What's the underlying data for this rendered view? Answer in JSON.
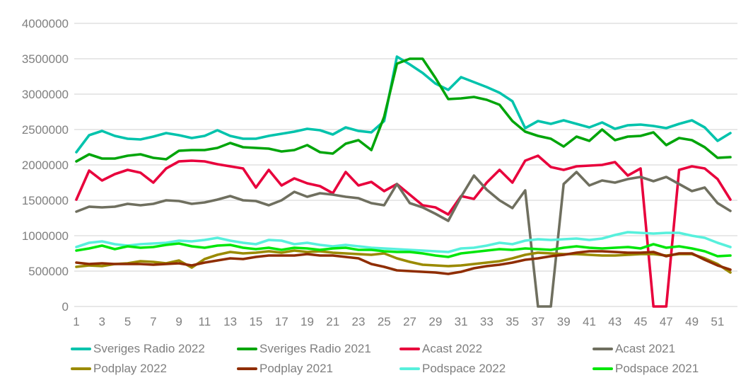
{
  "chart_data": {
    "type": "line",
    "title": "",
    "xlabel": "",
    "ylabel": "",
    "x": [
      1,
      2,
      3,
      4,
      5,
      6,
      7,
      8,
      9,
      10,
      11,
      12,
      13,
      14,
      15,
      16,
      17,
      18,
      19,
      20,
      21,
      22,
      23,
      24,
      25,
      26,
      27,
      28,
      29,
      30,
      31,
      32,
      33,
      34,
      35,
      36,
      37,
      38,
      39,
      40,
      41,
      42,
      43,
      44,
      45,
      46,
      47,
      48,
      49,
      50,
      51,
      52
    ],
    "x_tick_labels": [
      "1",
      "3",
      "5",
      "7",
      "9",
      "11",
      "13",
      "15",
      "17",
      "19",
      "21",
      "23",
      "25",
      "27",
      "29",
      "31",
      "33",
      "35",
      "37",
      "39",
      "41",
      "43",
      "45",
      "47",
      "49",
      "51"
    ],
    "y_ticks": [
      0,
      500000,
      1000000,
      1500000,
      2000000,
      2500000,
      3000000,
      3500000,
      4000000
    ],
    "y_tick_labels": [
      "0",
      "500000",
      "1000000",
      "1500000",
      "2000000",
      "2500000",
      "3000000",
      "3500000",
      "4000000"
    ],
    "ylim": [
      0,
      4000000
    ],
    "grid": true,
    "legend_position": "bottom",
    "colors": {
      "grid": "#d9d9d9",
      "axis_text": "#7f7f7f",
      "background": "#ffffff"
    },
    "series": [
      {
        "name": "Sveriges Radio 2022",
        "color": "#00c3ac",
        "values": [
          2180000,
          2420000,
          2480000,
          2410000,
          2370000,
          2360000,
          2400000,
          2450000,
          2420000,
          2380000,
          2410000,
          2490000,
          2410000,
          2370000,
          2370000,
          2410000,
          2440000,
          2470000,
          2510000,
          2490000,
          2430000,
          2530000,
          2480000,
          2460000,
          2620000,
          3530000,
          3420000,
          3300000,
          3150000,
          3060000,
          3240000,
          3170000,
          3100000,
          3020000,
          2900000,
          2520000,
          2620000,
          2580000,
          2630000,
          2580000,
          2530000,
          2600000,
          2510000,
          2560000,
          2570000,
          2550000,
          2520000,
          2580000,
          2630000,
          2530000,
          2340000,
          2450000
        ]
      },
      {
        "name": "Sveriges Radio 2021",
        "color": "#00a50a",
        "values": [
          2050000,
          2150000,
          2090000,
          2090000,
          2130000,
          2150000,
          2100000,
          2080000,
          2200000,
          2210000,
          2210000,
          2240000,
          2310000,
          2250000,
          2240000,
          2230000,
          2190000,
          2210000,
          2280000,
          2180000,
          2160000,
          2300000,
          2350000,
          2210000,
          2680000,
          3430000,
          3500000,
          3500000,
          3230000,
          2930000,
          2940000,
          2960000,
          2920000,
          2850000,
          2620000,
          2470000,
          2410000,
          2370000,
          2260000,
          2400000,
          2340000,
          2500000,
          2350000,
          2400000,
          2410000,
          2460000,
          2280000,
          2380000,
          2350000,
          2250000,
          2100000,
          2110000
        ]
      },
      {
        "name": "Acast 2022",
        "color": "#e8003c",
        "values": [
          1510000,
          1920000,
          1780000,
          1870000,
          1930000,
          1890000,
          1750000,
          1950000,
          2050000,
          2060000,
          2050000,
          2010000,
          1980000,
          1950000,
          1680000,
          1930000,
          1710000,
          1810000,
          1740000,
          1700000,
          1600000,
          1900000,
          1710000,
          1760000,
          1630000,
          1730000,
          1580000,
          1430000,
          1400000,
          1300000,
          1560000,
          1520000,
          1750000,
          1930000,
          1750000,
          2060000,
          2130000,
          1970000,
          1930000,
          1980000,
          1990000,
          2000000,
          2040000,
          1850000,
          1950000,
          0,
          0,
          1930000,
          1980000,
          1950000,
          1800000,
          1510000
        ]
      },
      {
        "name": "Acast 2021",
        "color": "#6f6f5f",
        "values": [
          1340000,
          1410000,
          1400000,
          1410000,
          1450000,
          1430000,
          1450000,
          1500000,
          1490000,
          1450000,
          1470000,
          1510000,
          1560000,
          1500000,
          1490000,
          1430000,
          1500000,
          1620000,
          1550000,
          1600000,
          1580000,
          1550000,
          1530000,
          1460000,
          1430000,
          1730000,
          1460000,
          1400000,
          1310000,
          1210000,
          1550000,
          1850000,
          1650000,
          1500000,
          1390000,
          1640000,
          0,
          0,
          1730000,
          1900000,
          1710000,
          1780000,
          1750000,
          1800000,
          1830000,
          1770000,
          1830000,
          1730000,
          1630000,
          1680000,
          1460000,
          1350000
        ]
      },
      {
        "name": "Podplay 2022",
        "color": "#9a8a00",
        "values": [
          560000,
          580000,
          570000,
          600000,
          610000,
          640000,
          630000,
          610000,
          650000,
          550000,
          670000,
          730000,
          770000,
          750000,
          760000,
          780000,
          760000,
          790000,
          770000,
          780000,
          760000,
          750000,
          740000,
          730000,
          750000,
          680000,
          630000,
          590000,
          580000,
          570000,
          580000,
          600000,
          620000,
          640000,
          680000,
          730000,
          760000,
          750000,
          740000,
          740000,
          730000,
          720000,
          720000,
          730000,
          740000,
          740000,
          720000,
          740000,
          740000,
          680000,
          600000,
          480000
        ]
      },
      {
        "name": "Podplay 2021",
        "color": "#8f2d00",
        "values": [
          620000,
          600000,
          610000,
          600000,
          600000,
          600000,
          590000,
          600000,
          610000,
          580000,
          620000,
          650000,
          680000,
          670000,
          700000,
          720000,
          720000,
          720000,
          740000,
          720000,
          720000,
          700000,
          680000,
          600000,
          560000,
          510000,
          500000,
          490000,
          480000,
          460000,
          490000,
          540000,
          570000,
          590000,
          620000,
          660000,
          680000,
          710000,
          730000,
          760000,
          780000,
          780000,
          770000,
          760000,
          760000,
          770000,
          710000,
          750000,
          750000,
          660000,
          580000,
          520000
        ]
      },
      {
        "name": "Podspace 2022",
        "color": "#57f0dc",
        "values": [
          840000,
          900000,
          920000,
          880000,
          860000,
          880000,
          890000,
          900000,
          930000,
          920000,
          940000,
          970000,
          930000,
          900000,
          880000,
          940000,
          930000,
          880000,
          900000,
          870000,
          850000,
          870000,
          850000,
          830000,
          820000,
          810000,
          800000,
          790000,
          780000,
          770000,
          820000,
          830000,
          860000,
          900000,
          880000,
          930000,
          950000,
          940000,
          950000,
          960000,
          940000,
          960000,
          1010000,
          1050000,
          1040000,
          1030000,
          1040000,
          1040000,
          1000000,
          970000,
          900000,
          840000
        ]
      },
      {
        "name": "Podspace 2021",
        "color": "#00e60a",
        "values": [
          790000,
          820000,
          860000,
          810000,
          850000,
          830000,
          840000,
          870000,
          890000,
          850000,
          830000,
          860000,
          870000,
          830000,
          810000,
          830000,
          800000,
          830000,
          820000,
          800000,
          820000,
          830000,
          800000,
          800000,
          780000,
          770000,
          770000,
          750000,
          720000,
          700000,
          750000,
          770000,
          790000,
          810000,
          800000,
          820000,
          810000,
          800000,
          830000,
          850000,
          830000,
          820000,
          830000,
          840000,
          820000,
          880000,
          830000,
          850000,
          820000,
          780000,
          710000,
          720000
        ]
      }
    ]
  }
}
